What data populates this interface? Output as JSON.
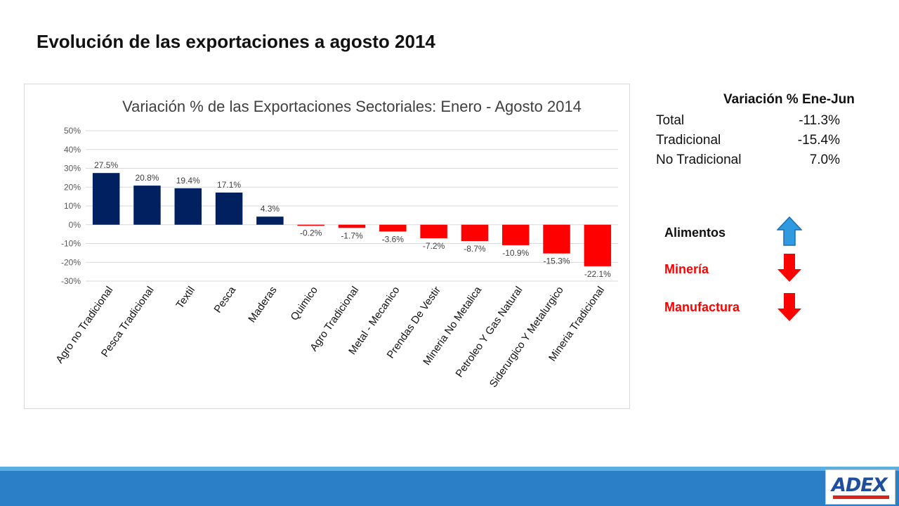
{
  "slide": {
    "title": "Evolución de las exportaciones a agosto 2014"
  },
  "chart_data": {
    "type": "bar",
    "title": "Variación % de las Exportaciones Sectoriales: Enero - Agosto 2014",
    "categories": [
      "Agro no Tradicional",
      "Pesca Tradicional",
      "Textil",
      "Pesca",
      "Maderas",
      "Quimico",
      "Agro Tradicional",
      "Metal - Mecanico",
      "Prendas De Vestir",
      "Mineria No Metalica",
      "Petroleo Y Gas Natural",
      "Siderurgico Y Metalurgico",
      "Mineria Tradicional"
    ],
    "values": [
      27.5,
      20.8,
      19.4,
      17.1,
      4.3,
      -0.2,
      -1.7,
      -3.6,
      -7.2,
      -8.7,
      -10.9,
      -15.3,
      -22.1
    ],
    "data_labels": [
      "27.5%",
      "20.8%",
      "19.4%",
      "17.1%",
      "4.3%",
      "-0.2%",
      "-1.7%",
      "-3.6%",
      "-7.2%",
      "-8.7%",
      "-10.9%",
      "-15.3%",
      "-22.1%"
    ],
    "yticks": [
      50,
      40,
      30,
      20,
      10,
      0,
      -10,
      -20,
      -30
    ],
    "ytick_labels": [
      "50%",
      "40%",
      "30%",
      "20%",
      "10%",
      "0%",
      "-10%",
      "-20%",
      "-30%"
    ],
    "ylim": [
      -30,
      50
    ],
    "grid": true,
    "colors": {
      "positive": "#002060",
      "negative": "#ff0000"
    }
  },
  "summary": {
    "heading": "Variación % Ene-Jun",
    "rows": [
      {
        "label": "Total",
        "value": "-11.3%"
      },
      {
        "label": "Tradicional",
        "value": "-15.4%"
      },
      {
        "label": "No Tradicional",
        "value": "7.0%"
      }
    ]
  },
  "sectors": [
    {
      "label": "Alimentos",
      "color": "#111111",
      "arrow": "up-arrow",
      "arrow_color": "#2f9ae0"
    },
    {
      "label": "Minería",
      "color": "#ff0000",
      "arrow": "down-arrow",
      "arrow_color": "#ff0000"
    },
    {
      "label": "Manufactura",
      "color": "#ff0000",
      "arrow": "down-arrow",
      "arrow_color": "#ff0000"
    }
  ],
  "logo": {
    "text": "ADEX"
  }
}
